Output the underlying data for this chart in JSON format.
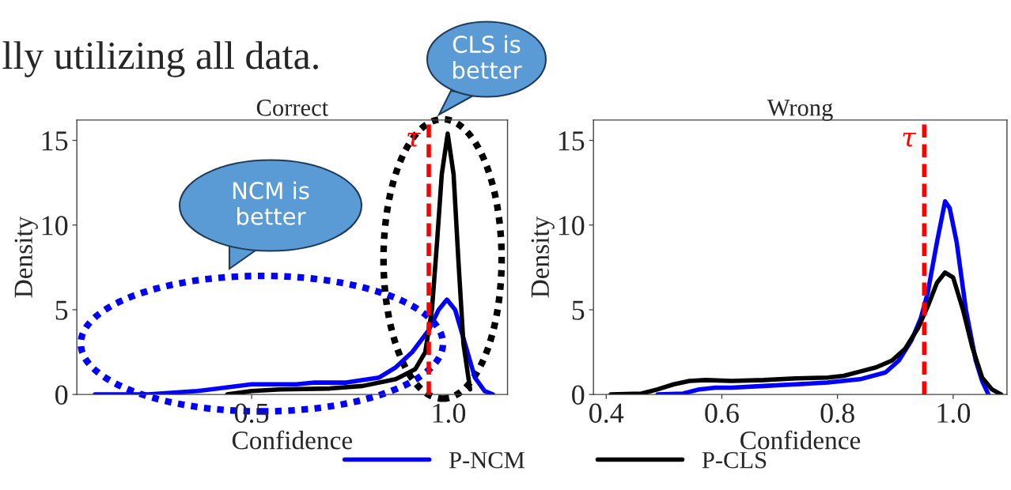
{
  "chart_data": [
    {
      "type": "line",
      "title": "Correct",
      "xlabel": "Confidence",
      "ylabel": "Density",
      "xlim": [
        0.056,
        1.15
      ],
      "xticks": [
        0.5,
        {
          "value": 1,
          "label": "1.0"
        }
      ],
      "ylim": [
        0,
        16.2
      ],
      "yticks": [
        0,
        5,
        10,
        15
      ],
      "series": [
        {
          "name": "P-NCM",
          "color": "#0000ff",
          "x": [
            0.102,
            0.237,
            0.362,
            0.5,
            0.614,
            0.66,
            0.74,
            0.824,
            0.866,
            0.908,
            0.95,
            0.975,
            0.996,
            1.017,
            1.042,
            1.067,
            1.092,
            1.113
          ],
          "values": [
            0,
            0,
            0.2,
            0.6,
            0.6,
            0.7,
            0.7,
            1.0,
            1.6,
            2.5,
            3.8,
            5.0,
            5.6,
            5.0,
            3.0,
            1.0,
            0.2,
            0
          ]
        },
        {
          "name": "P-CLS",
          "color": "#000000",
          "x": [
            0.438,
            0.5,
            0.572,
            0.698,
            0.782,
            0.866,
            0.916,
            0.941,
            0.958,
            0.971,
            0.983,
            0.998,
            1.013,
            1.025,
            1.038,
            1.055
          ],
          "values": [
            0,
            0.2,
            0.3,
            0.35,
            0.5,
            0.9,
            1.5,
            2.5,
            5,
            9,
            13,
            15.4,
            13,
            8,
            3,
            0.3
          ]
        }
      ],
      "ref_lines": [
        {
          "axis": "x",
          "value": 0.95,
          "label": "τ",
          "color": "#ff0000",
          "line_style": "dashed"
        }
      ],
      "annotations": [
        "lly utilizing all data.",
        "CLS is better",
        "NCM is better"
      ],
      "legend": "bottom",
      "grid": false
    },
    {
      "type": "line",
      "title": "Wrong",
      "xlabel": "Confidence",
      "ylabel": "Density",
      "xlim": [
        0.378,
        1.093
      ],
      "xticks": [
        0.4,
        0.6,
        0.8,
        {
          "value": 1,
          "label": "1.0"
        }
      ],
      "ylim": [
        0,
        16.2
      ],
      "yticks": [
        0,
        5,
        10,
        15
      ],
      "series": [
        {
          "name": "P-NCM",
          "color": "#0000ff",
          "x": [
            0.489,
            0.533,
            0.561,
            0.589,
            0.617,
            0.672,
            0.728,
            0.783,
            0.839,
            0.883,
            0.906,
            0.928,
            0.944,
            0.956,
            0.972,
            0.986,
            0.994,
            1.006,
            1.022,
            1.039,
            1.05,
            1.061
          ],
          "values": [
            0,
            0.05,
            0.3,
            0.4,
            0.4,
            0.5,
            0.6,
            0.7,
            0.9,
            1.3,
            2.0,
            3.2,
            4.5,
            6.0,
            9.0,
            11.4,
            11.0,
            9.0,
            5.0,
            2.0,
            0.8,
            0
          ]
        },
        {
          "name": "P-CLS",
          "color": "#000000",
          "x": [
            0.408,
            0.461,
            0.489,
            0.517,
            0.544,
            0.572,
            0.617,
            0.672,
            0.728,
            0.783,
            0.811,
            0.839,
            0.867,
            0.894,
            0.917,
            0.939,
            0.956,
            0.972,
            0.986,
            1.0,
            1.017,
            1.033,
            1.05,
            1.067,
            1.083
          ],
          "values": [
            0,
            0.05,
            0.3,
            0.6,
            0.8,
            0.85,
            0.8,
            0.85,
            0.95,
            1.0,
            1.1,
            1.35,
            1.6,
            2.0,
            2.7,
            3.9,
            5.2,
            6.6,
            7.2,
            6.9,
            5.0,
            2.8,
            1.0,
            0.3,
            0
          ]
        }
      ],
      "ref_lines": [
        {
          "axis": "x",
          "value": 0.95,
          "label": "τ",
          "color": "#ff0000",
          "line_style": "dashed"
        }
      ],
      "grid": false
    }
  ]
}
